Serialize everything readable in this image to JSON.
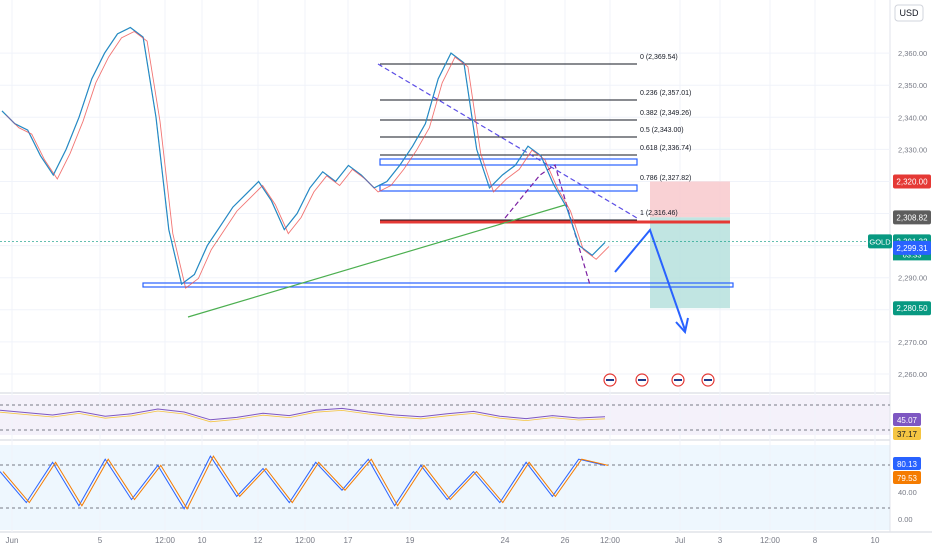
{
  "currency_button": "USD",
  "chart_data": {
    "type": "line",
    "symbol": "GOLD",
    "currency": "USD",
    "timeframe_countdown": "03:33",
    "price_axis_ticks": [
      2360.0,
      2350.0,
      2340.0,
      2330.0,
      2320.0,
      2310.0,
      2300.0,
      2290.0,
      2280.0,
      2270.0,
      2260.0
    ],
    "price_labels": [
      {
        "value": 2320.0,
        "text": "2,320.00",
        "color": "#e53935"
      },
      {
        "value": 2308.82,
        "text": "2,308.82",
        "color": "#5d5d5d"
      },
      {
        "value": 2301.32,
        "text": "2,301.32",
        "color": "#089981",
        "symbol_badge": true
      },
      {
        "value": 2299.31,
        "text": "2,299.31",
        "color": "#2962ff"
      },
      {
        "value": 2280.5,
        "text": "2,280.50",
        "color": "#089981"
      }
    ],
    "time_axis": [
      "Jun",
      "5",
      "12:00",
      "10",
      "12",
      "12:00",
      "17",
      "19",
      "24",
      "26",
      "12:00",
      "Jul",
      "3",
      "12:00",
      "8",
      "10"
    ],
    "fibonacci": [
      {
        "ratio": "0",
        "price": "2,369.54"
      },
      {
        "ratio": "0.236",
        "price": "2,357.01"
      },
      {
        "ratio": "0.382",
        "price": "2,349.26"
      },
      {
        "ratio": "0.5",
        "price": "2,343.00"
      },
      {
        "ratio": "0.618",
        "price": "2,336.74"
      },
      {
        "ratio": "0.786",
        "price": "2,327.82"
      },
      {
        "ratio": "1",
        "price": "2,316.46"
      }
    ],
    "trade_setup": {
      "entry": 2308.82,
      "stop": 2320.0,
      "target": 2280.5
    },
    "support_level": 2299.31,
    "price_series": [
      [
        "Jun",
        2342
      ],
      [
        "",
        2338
      ],
      [
        "",
        2336
      ],
      [
        "",
        2328
      ],
      [
        "",
        2322
      ],
      [
        "",
        2330
      ],
      [
        "",
        2340
      ],
      [
        "",
        2352
      ],
      [
        "",
        2360
      ],
      [
        "",
        2366
      ],
      [
        "",
        2368
      ],
      [
        "",
        2365
      ],
      [
        "",
        2340
      ],
      [
        "",
        2305
      ],
      [
        "",
        2288
      ],
      [
        "",
        2291
      ],
      [
        "",
        2300
      ],
      [
        "",
        2306
      ],
      [
        "",
        2312
      ],
      [
        "",
        2316
      ],
      [
        "",
        2320
      ],
      [
        "",
        2314
      ],
      [
        "",
        2305
      ],
      [
        "",
        2310
      ],
      [
        "",
        2318
      ],
      [
        "",
        2323
      ],
      [
        "",
        2320
      ],
      [
        "",
        2325
      ],
      [
        "",
        2322
      ],
      [
        "",
        2318
      ],
      [
        "",
        2320
      ],
      [
        "",
        2325
      ],
      [
        "",
        2331
      ],
      [
        "",
        2338
      ],
      [
        "",
        2352
      ],
      [
        "",
        2360
      ],
      [
        "",
        2357
      ],
      [
        "",
        2330
      ],
      [
        "",
        2318
      ],
      [
        "",
        2322
      ],
      [
        "",
        2325
      ],
      [
        "",
        2331
      ],
      [
        "",
        2328
      ],
      [
        "",
        2319
      ],
      [
        "",
        2312
      ],
      [
        "",
        2300
      ],
      [
        "",
        2297
      ],
      [
        "",
        2301
      ]
    ],
    "rsi": {
      "values": [
        58,
        54,
        50,
        56,
        48,
        52,
        60,
        55,
        42,
        46,
        53,
        49,
        58,
        61,
        55,
        50,
        47,
        52,
        56,
        48,
        44,
        49,
        45,
        47
      ],
      "labels": [
        "45.07",
        "37.17"
      ],
      "label_colors": [
        "#7e57c2",
        "#f5c542"
      ]
    },
    "stoch": {
      "values": [
        70,
        20,
        85,
        15,
        90,
        25,
        80,
        10,
        95,
        30,
        75,
        20,
        85,
        40,
        90,
        15,
        80,
        25,
        70,
        20,
        85,
        30,
        90,
        80
      ],
      "labels": [
        "80.13",
        "79.53"
      ],
      "label_colors": [
        "#2962ff",
        "#f57c00"
      ],
      "ticks": [
        "40.00",
        "0.00"
      ]
    },
    "events_count": 4
  }
}
